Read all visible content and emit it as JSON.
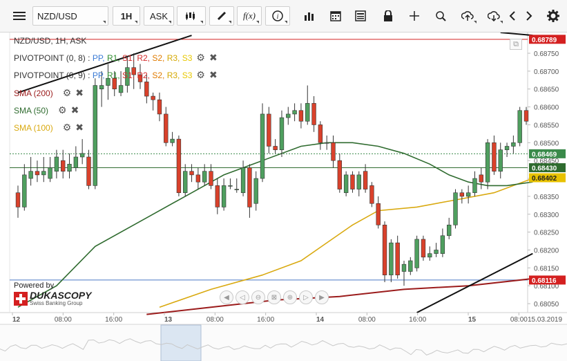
{
  "toolbar": {
    "symbol": "NZD/USD",
    "timeframe": "1H",
    "price_side": "ASK",
    "function_label": "f(x)",
    "icons": [
      "menu-icon",
      "candles-icon",
      "pencil-icon",
      "function-icon",
      "info-icon",
      "volume-bars-icon",
      "calendar-icon",
      "news-icon",
      "lock-icon",
      "crosshair-icon",
      "zoom-icon",
      "upload-icon",
      "download-icon",
      "chevron-left-icon",
      "chevron-right-icon",
      "gear-icon"
    ]
  },
  "legend": {
    "instrument": "NZD/USD, 1H, ASK",
    "pivots": [
      {
        "label": "PIVOTPOINT (0, 8)",
        "sep": " : ",
        "items": [
          "PP",
          "R1",
          "S1",
          "R2",
          "S2",
          "R3",
          "S3"
        ]
      },
      {
        "label": "PIVOTPOINT (0, 9)",
        "sep": " : ",
        "items": [
          "PP",
          "R1",
          "S1",
          "R2",
          "S2",
          "R3",
          "S3"
        ]
      }
    ],
    "pivot_colors": [
      "#3a7bd5",
      "#2e8b2e",
      "#d42a2a",
      "#d42a2a",
      "#e07b00",
      "#d4a800",
      "#e8c800"
    ],
    "smas": [
      {
        "label": "SMA (200)",
        "color": "#9b1b1b"
      },
      {
        "label": "SMA (50)",
        "color": "#2f6b2f"
      },
      {
        "label": "SMA (100)",
        "color": "#d9a90f"
      }
    ]
  },
  "branding": {
    "powered": "Powered by",
    "name": "DUKASCOPY",
    "tagline": "Swiss Banking Group"
  },
  "chart_data": {
    "type": "candlestick",
    "title": "NZD/USD, 1H, ASK",
    "y_range": [
      0.68025,
      0.68808
    ],
    "y_ticks": [
      "0.68750",
      "0.68700",
      "0.68650",
      "0.68600",
      "0.68550",
      "0.68500",
      "0.68450",
      "0.68400",
      "0.68350",
      "0.68300",
      "0.68250",
      "0.68200",
      "0.68150",
      "0.68100",
      "0.68050"
    ],
    "x_ticks": [
      "12",
      "08:00",
      "16:00",
      "13",
      "08:00",
      "16:00",
      "14",
      "08:00",
      "16:00",
      "15",
      "08:00"
    ],
    "x_tick_bold": [
      true,
      false,
      false,
      true,
      false,
      false,
      true,
      false,
      false,
      true,
      false
    ],
    "last_date": "15.03.2019",
    "price_tags": [
      {
        "value": "0.68789",
        "bg": "#d42020",
        "fg": "#ffffff"
      },
      {
        "value": "0.68469",
        "bg": "#3a8a4a",
        "fg": "#ffffff"
      },
      {
        "value": "0.68430",
        "bg": "#2f6b2f",
        "fg": "#ffffff"
      },
      {
        "value": "0.68402",
        "bg": "#e8c200",
        "fg": "#222222"
      },
      {
        "value": "0.68116",
        "bg": "#d42020",
        "fg": "#ffffff"
      }
    ],
    "lines": {
      "resistance": 0.68789,
      "support_blue": 0.68116,
      "pivot_green": 0.6843,
      "current_dashed": 0.68469
    },
    "candles": [
      [
        0.6836,
        0.6832,
        0.6838,
        0.6829
      ],
      [
        0.6832,
        0.6841,
        0.6844,
        0.6831
      ],
      [
        0.684,
        0.6842,
        0.6846,
        0.6838
      ],
      [
        0.6842,
        0.6841,
        0.6845,
        0.6839
      ],
      [
        0.6841,
        0.6842,
        0.6846,
        0.6839
      ],
      [
        0.684,
        0.6843,
        0.6846,
        0.6839
      ],
      [
        0.6842,
        0.6846,
        0.6848,
        0.684
      ],
      [
        0.6845,
        0.6842,
        0.6848,
        0.684
      ],
      [
        0.6842,
        0.6844,
        0.6847,
        0.684
      ],
      [
        0.6843,
        0.6846,
        0.6849,
        0.6842
      ],
      [
        0.6846,
        0.6847,
        0.6851,
        0.6844
      ],
      [
        0.6846,
        0.6838,
        0.6848,
        0.6837
      ],
      [
        0.6838,
        0.6866,
        0.6868,
        0.6837
      ],
      [
        0.6865,
        0.6866,
        0.687,
        0.686
      ],
      [
        0.6866,
        0.6868,
        0.6872,
        0.6862
      ],
      [
        0.6868,
        0.6865,
        0.687,
        0.6863
      ],
      [
        0.6864,
        0.6866,
        0.687,
        0.6863
      ],
      [
        0.6866,
        0.6871,
        0.6874,
        0.6864
      ],
      [
        0.6871,
        0.6869,
        0.6875,
        0.6865
      ],
      [
        0.6869,
        0.6867,
        0.6872,
        0.6865
      ],
      [
        0.6867,
        0.6863,
        0.6869,
        0.6861
      ],
      [
        0.6863,
        0.6862,
        0.6864,
        0.6859
      ],
      [
        0.6862,
        0.6858,
        0.6864,
        0.6856
      ],
      [
        0.6858,
        0.685,
        0.686,
        0.6849
      ],
      [
        0.685,
        0.6851,
        0.6853,
        0.6849
      ],
      [
        0.6851,
        0.6836,
        0.6852,
        0.6835
      ],
      [
        0.6836,
        0.6842,
        0.6844,
        0.6835
      ],
      [
        0.6842,
        0.6841,
        0.6844,
        0.6839
      ],
      [
        0.6841,
        0.6839,
        0.6843,
        0.6837
      ],
      [
        0.6839,
        0.6842,
        0.6844,
        0.6838
      ],
      [
        0.6842,
        0.6838,
        0.6844,
        0.6837
      ],
      [
        0.6838,
        0.6832,
        0.684,
        0.683
      ],
      [
        0.6832,
        0.6838,
        0.684,
        0.6831
      ],
      [
        0.6838,
        0.6838,
        0.684,
        0.6837
      ],
      [
        0.6837,
        0.6837,
        0.684,
        0.6836
      ],
      [
        0.6836,
        0.6843,
        0.6845,
        0.6835
      ],
      [
        0.6843,
        0.6832,
        0.6844,
        0.6829
      ],
      [
        0.6833,
        0.684,
        0.6842,
        0.6831
      ],
      [
        0.684,
        0.6858,
        0.6861,
        0.6839
      ],
      [
        0.6858,
        0.6849,
        0.686,
        0.6847
      ],
      [
        0.6849,
        0.6848,
        0.6851,
        0.6847
      ],
      [
        0.6848,
        0.6857,
        0.6859,
        0.6846
      ],
      [
        0.6857,
        0.6858,
        0.686,
        0.6855
      ],
      [
        0.6858,
        0.6859,
        0.6861,
        0.6856
      ],
      [
        0.6859,
        0.6856,
        0.6861,
        0.6854
      ],
      [
        0.6856,
        0.6861,
        0.6866,
        0.6855
      ],
      [
        0.6861,
        0.6855,
        0.6863,
        0.6853
      ],
      [
        0.6855,
        0.685,
        0.6856,
        0.6848
      ],
      [
        0.685,
        0.685,
        0.6852,
        0.6848
      ],
      [
        0.685,
        0.6845,
        0.6852,
        0.6843
      ],
      [
        0.6845,
        0.6837,
        0.6847,
        0.6836
      ],
      [
        0.6836,
        0.6841,
        0.6842,
        0.6835
      ],
      [
        0.6841,
        0.6837,
        0.6842,
        0.6836
      ],
      [
        0.6837,
        0.6841,
        0.6842,
        0.6835
      ],
      [
        0.6842,
        0.6837,
        0.6844,
        0.6836
      ],
      [
        0.6838,
        0.6833,
        0.6839,
        0.6832
      ],
      [
        0.6833,
        0.6827,
        0.6835,
        0.6826
      ],
      [
        0.6827,
        0.6813,
        0.6828,
        0.6811
      ],
      [
        0.6813,
        0.6822,
        0.6823,
        0.6811
      ],
      [
        0.6822,
        0.6813,
        0.6824,
        0.6812
      ],
      [
        0.6814,
        0.6816,
        0.6817,
        0.681
      ],
      [
        0.6814,
        0.6817,
        0.6818,
        0.6813
      ],
      [
        0.6815,
        0.6823,
        0.6824,
        0.6814
      ],
      [
        0.6823,
        0.6818,
        0.6824,
        0.6817
      ],
      [
        0.6818,
        0.6819,
        0.6821,
        0.6817
      ],
      [
        0.6819,
        0.682,
        0.6822,
        0.6818
      ],
      [
        0.6819,
        0.6824,
        0.6826,
        0.6818
      ],
      [
        0.6824,
        0.6827,
        0.6829,
        0.6823
      ],
      [
        0.6827,
        0.6836,
        0.6837,
        0.6826
      ],
      [
        0.6836,
        0.6835,
        0.6837,
        0.6833
      ],
      [
        0.6835,
        0.6836,
        0.6838,
        0.6833
      ],
      [
        0.6836,
        0.684,
        0.6842,
        0.6835
      ],
      [
        0.6841,
        0.6839,
        0.6843,
        0.6837
      ],
      [
        0.6839,
        0.685,
        0.6851,
        0.6837
      ],
      [
        0.685,
        0.6842,
        0.6852,
        0.6841
      ],
      [
        0.6842,
        0.6848,
        0.685,
        0.684
      ],
      [
        0.6848,
        0.6849,
        0.685,
        0.6846
      ],
      [
        0.6849,
        0.685,
        0.6852,
        0.6847
      ],
      [
        0.685,
        0.6859,
        0.686,
        0.6849
      ],
      [
        0.6859,
        0.6856,
        0.686,
        0.6855
      ]
    ],
    "sma50": [
      [
        0,
        0.6804
      ],
      [
        6,
        0.681
      ],
      [
        12,
        0.6821
      ],
      [
        20,
        0.6829
      ],
      [
        26,
        0.6835
      ],
      [
        32,
        0.6841
      ],
      [
        38,
        0.6845
      ],
      [
        44,
        0.6849
      ],
      [
        48,
        0.685
      ],
      [
        52,
        0.685
      ],
      [
        56,
        0.6849
      ],
      [
        60,
        0.6847
      ],
      [
        64,
        0.6844
      ],
      [
        67,
        0.6841
      ],
      [
        70,
        0.6839
      ],
      [
        73,
        0.6838
      ],
      [
        76,
        0.6838
      ],
      [
        80,
        0.6839
      ]
    ],
    "sma100": [
      [
        22,
        0.6804
      ],
      [
        30,
        0.6809
      ],
      [
        38,
        0.6813
      ],
      [
        44,
        0.6817
      ],
      [
        48,
        0.6822
      ],
      [
        52,
        0.6827
      ],
      [
        56,
        0.6831
      ],
      [
        62,
        0.6832
      ],
      [
        68,
        0.6834
      ],
      [
        74,
        0.6836
      ],
      [
        80,
        0.684
      ]
    ],
    "sma200": [
      [
        20,
        0.6802
      ],
      [
        30,
        0.6804
      ],
      [
        40,
        0.6806
      ],
      [
        50,
        0.6807
      ],
      [
        60,
        0.6809
      ],
      [
        70,
        0.681
      ],
      [
        80,
        0.6812
      ]
    ],
    "trendlines": [
      {
        "from": [
          0,
          0.6864
        ],
        "to": [
          27,
          0.688
        ]
      },
      {
        "from": [
          62,
          0.68025
        ],
        "to": [
          80,
          0.6819
        ]
      },
      {
        "from": [
          75,
          0.68808
        ],
        "to": [
          80,
          0.688
        ]
      }
    ]
  }
}
